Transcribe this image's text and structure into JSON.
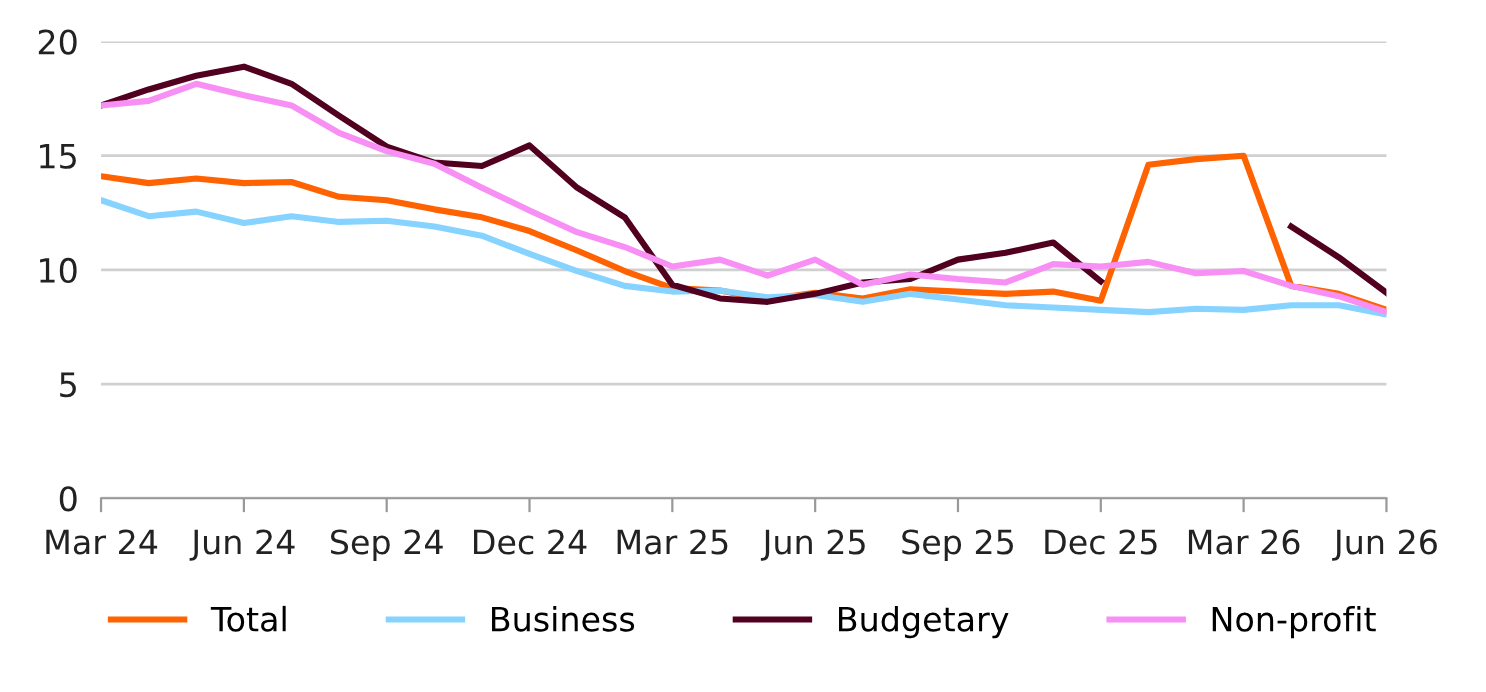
{
  "chart_data": {
    "type": "line",
    "x": [
      "2024-03",
      "2024-04",
      "2024-05",
      "2024-06",
      "2024-07",
      "2024-08",
      "2024-09",
      "2024-10",
      "2024-11",
      "2024-12",
      "2025-01",
      "2025-02",
      "2025-03",
      "2025-04",
      "2025-05",
      "2025-06",
      "2025-07",
      "2025-08",
      "2025-09",
      "2025-10",
      "2025-11",
      "2025-12",
      "2026-01",
      "2026-02",
      "2026-03",
      "2026-04",
      "2026-05",
      "2026-06"
    ],
    "series": [
      {
        "name": "Total",
        "color": "#ff6200",
        "values": [
          14.1,
          13.8,
          14.0,
          13.8,
          13.85,
          13.2,
          13.05,
          12.65,
          12.3,
          11.7,
          10.85,
          9.95,
          9.2,
          9.1,
          8.7,
          9.0,
          8.75,
          9.15,
          9.05,
          8.95,
          9.05,
          8.65,
          14.6,
          14.85,
          15.0,
          9.3,
          8.95,
          8.25
        ]
      },
      {
        "name": "Business",
        "color": "#87d3ff",
        "values": [
          13.05,
          12.35,
          12.55,
          12.05,
          12.35,
          12.1,
          12.15,
          11.9,
          11.5,
          10.7,
          9.95,
          9.3,
          9.05,
          9.1,
          8.8,
          8.9,
          8.6,
          8.95,
          8.7,
          8.45,
          8.35,
          8.25,
          8.15,
          8.3,
          8.25,
          8.45,
          8.45,
          8.05
        ]
      },
      {
        "name": "Budgetary",
        "color": "#52001f",
        "values": [
          17.2,
          17.9,
          18.5,
          18.9,
          18.15,
          16.75,
          15.4,
          14.7,
          14.55,
          15.45,
          13.6,
          12.3,
          9.35,
          8.75,
          8.6,
          8.95,
          9.45,
          9.6,
          10.45,
          10.75,
          11.2,
          9.5,
          null,
          null,
          null,
          11.9,
          10.55,
          9.0
        ]
      },
      {
        "name": "Non-profit",
        "color": "#f78ff5",
        "values": [
          17.2,
          17.4,
          18.15,
          17.65,
          17.2,
          16.0,
          15.2,
          14.65,
          13.6,
          12.6,
          11.65,
          11.0,
          10.15,
          10.45,
          9.75,
          10.45,
          9.35,
          9.8,
          9.6,
          9.45,
          10.25,
          10.15,
          10.35,
          9.85,
          9.95,
          9.3,
          8.85,
          8.15
        ]
      }
    ],
    "xlim": [
      "2024-03",
      "2026-06"
    ],
    "xticks": [
      {
        "value": "2024-03",
        "label": "Mar 24"
      },
      {
        "value": "2024-06",
        "label": "Jun 24"
      },
      {
        "value": "2024-09",
        "label": "Sep 24"
      },
      {
        "value": "2024-12",
        "label": "Dec 24"
      },
      {
        "value": "2025-03",
        "label": "Mar 25"
      },
      {
        "value": "2025-06",
        "label": "Jun 25"
      },
      {
        "value": "2025-09",
        "label": "Sep 25"
      },
      {
        "value": "2025-12",
        "label": "Dec 25"
      },
      {
        "value": "2026-03",
        "label": "Mar 26"
      },
      {
        "value": "2026-06",
        "label": "Jun 26"
      }
    ],
    "ylim": [
      0,
      20
    ],
    "yticks": [
      0,
      5,
      10,
      15,
      20
    ],
    "grid": "y",
    "legend": "bottom",
    "marker": "none",
    "line_style": "solid"
  }
}
